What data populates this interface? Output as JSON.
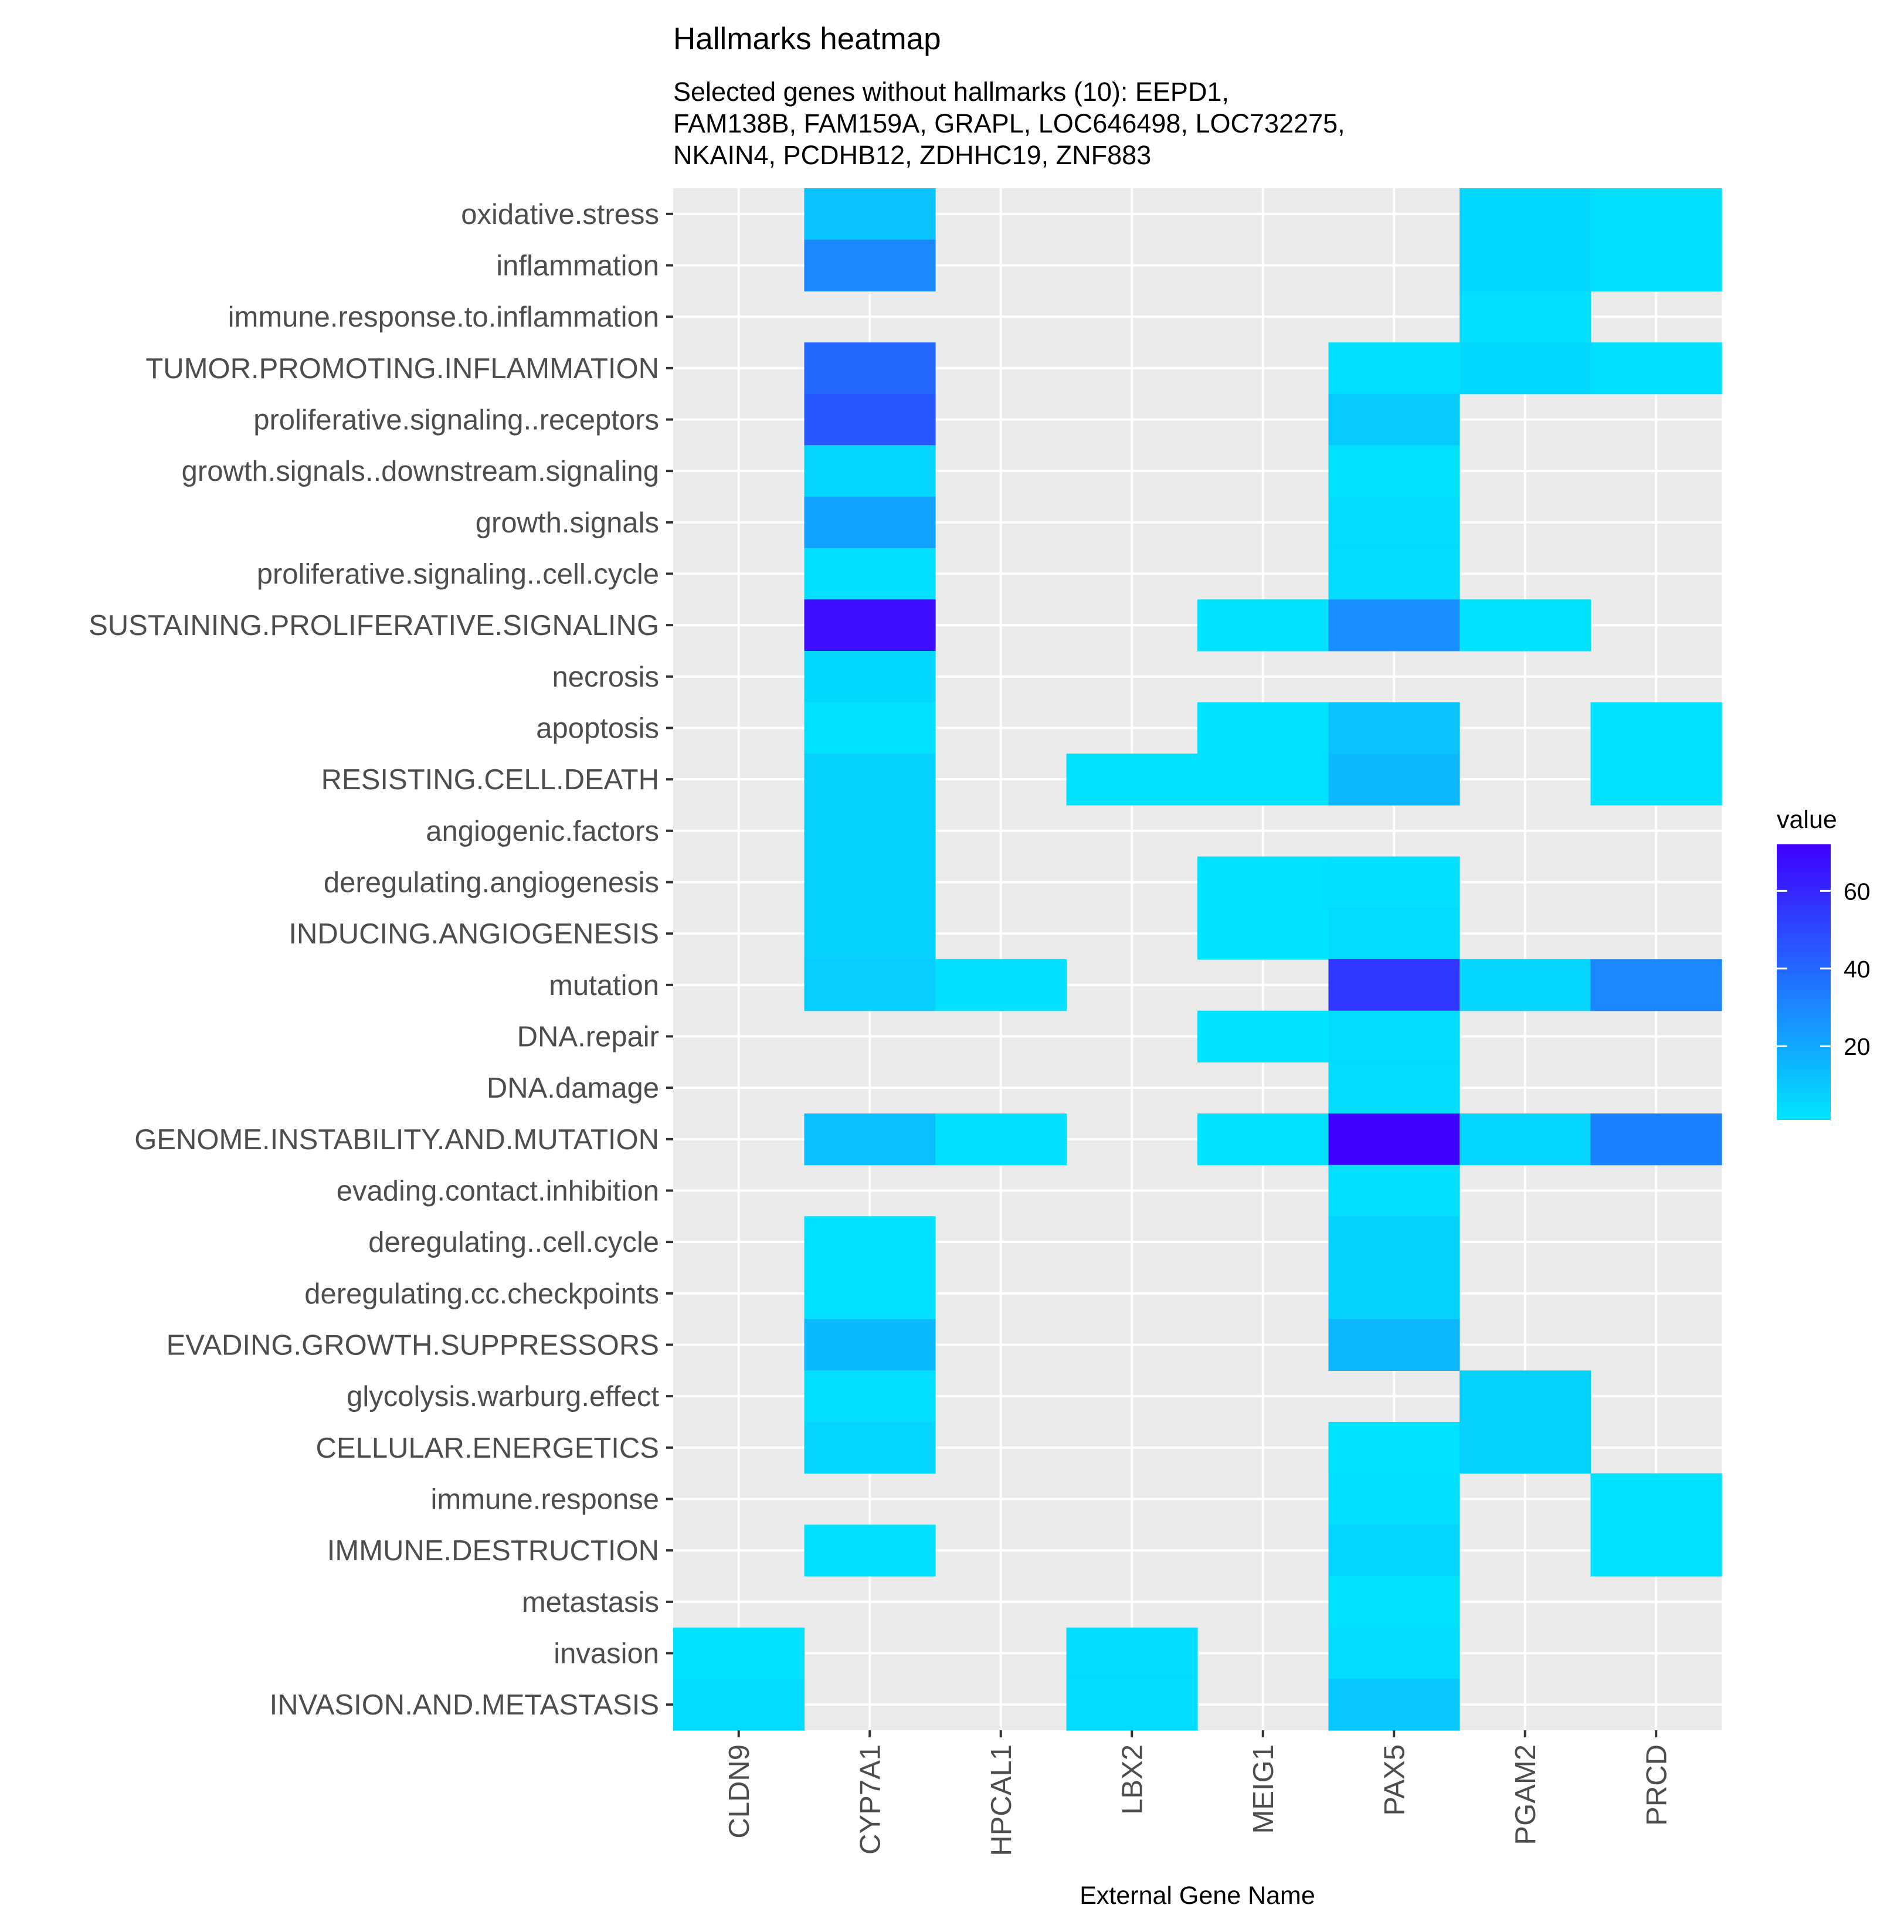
{
  "chart_data": {
    "type": "heatmap",
    "title": "Hallmarks heatmap",
    "subtitle_lines": [
      "Selected genes without hallmarks (10): EEPD1,",
      "FAM138B, FAM159A, GRAPL, LOC646498, LOC732275,",
      "NKAIN4, PCDHB12, ZDHHC19, ZNF883"
    ],
    "xlabel": "External Gene Name",
    "ylabel": "",
    "x_categories": [
      "CLDN9",
      "CYP7A1",
      "HPCAL1",
      "LBX2",
      "MEIG1",
      "PAX5",
      "PGAM2",
      "PRCD"
    ],
    "y_categories": [
      "oxidative.stress",
      "inflammation",
      "immune.response.to.inflammation",
      "TUMOR.PROMOTING.INFLAMMATION",
      "proliferative.signaling..receptors",
      "growth.signals..downstream.signaling",
      "growth.signals",
      "proliferative.signaling..cell.cycle",
      "SUSTAINING.PROLIFERATIVE.SIGNALING",
      "necrosis",
      "apoptosis",
      "RESISTING.CELL.DEATH",
      "angiogenic.factors",
      "deregulating.angiogenesis",
      "INDUCING.ANGIOGENESIS",
      "mutation",
      "DNA.repair",
      "DNA.damage",
      "GENOME.INSTABILITY.AND.MUTATION",
      "evading.contact.inhibition",
      "deregulating..cell.cycle",
      "deregulating.cc.checkpoints",
      "EVADING.GROWTH.SUPPRESSORS",
      "glycolysis.warburg.effect",
      "CELLULAR.ENERGETICS",
      "immune.response",
      "IMMUNE.DESTRUCTION",
      "metastasis",
      "invasion",
      "INVASION.AND.METASTASIS"
    ],
    "cells": [
      {
        "y": "oxidative.stress",
        "x": "CYP7A1",
        "value": 12
      },
      {
        "y": "oxidative.stress",
        "x": "PGAM2",
        "value": 5
      },
      {
        "y": "oxidative.stress",
        "x": "PRCD",
        "value": 3
      },
      {
        "y": "inflammation",
        "x": "CYP7A1",
        "value": 30
      },
      {
        "y": "inflammation",
        "x": "PGAM2",
        "value": 5
      },
      {
        "y": "inflammation",
        "x": "PRCD",
        "value": 3
      },
      {
        "y": "immune.response.to.inflammation",
        "x": "PGAM2",
        "value": 3
      },
      {
        "y": "TUMOR.PROMOTING.INFLAMMATION",
        "x": "CYP7A1",
        "value": 40
      },
      {
        "y": "TUMOR.PROMOTING.INFLAMMATION",
        "x": "PAX5",
        "value": 3
      },
      {
        "y": "TUMOR.PROMOTING.INFLAMMATION",
        "x": "PGAM2",
        "value": 5
      },
      {
        "y": "TUMOR.PROMOTING.INFLAMMATION",
        "x": "PRCD",
        "value": 3
      },
      {
        "y": "proliferative.signaling..receptors",
        "x": "CYP7A1",
        "value": 45
      },
      {
        "y": "proliferative.signaling..receptors",
        "x": "PAX5",
        "value": 9
      },
      {
        "y": "growth.signals..downstream.signaling",
        "x": "CYP7A1",
        "value": 6
      },
      {
        "y": "growth.signals..downstream.signaling",
        "x": "PAX5",
        "value": 2
      },
      {
        "y": "growth.signals",
        "x": "CYP7A1",
        "value": 22
      },
      {
        "y": "growth.signals",
        "x": "PAX5",
        "value": 4
      },
      {
        "y": "proliferative.signaling..cell.cycle",
        "x": "CYP7A1",
        "value": 3
      },
      {
        "y": "proliferative.signaling..cell.cycle",
        "x": "PAX5",
        "value": 4
      },
      {
        "y": "SUSTAINING.PROLIFERATIVE.SIGNALING",
        "x": "CYP7A1",
        "value": 68
      },
      {
        "y": "SUSTAINING.PROLIFERATIVE.SIGNALING",
        "x": "MEIG1",
        "value": 2
      },
      {
        "y": "SUSTAINING.PROLIFERATIVE.SIGNALING",
        "x": "PAX5",
        "value": 28
      },
      {
        "y": "SUSTAINING.PROLIFERATIVE.SIGNALING",
        "x": "PGAM2",
        "value": 2
      },
      {
        "y": "necrosis",
        "x": "CYP7A1",
        "value": 5
      },
      {
        "y": "apoptosis",
        "x": "CYP7A1",
        "value": 2
      },
      {
        "y": "apoptosis",
        "x": "MEIG1",
        "value": 2
      },
      {
        "y": "apoptosis",
        "x": "PAX5",
        "value": 12
      },
      {
        "y": "apoptosis",
        "x": "PRCD",
        "value": 2
      },
      {
        "y": "RESISTING.CELL.DEATH",
        "x": "CYP7A1",
        "value": 7
      },
      {
        "y": "RESISTING.CELL.DEATH",
        "x": "LBX2",
        "value": 2
      },
      {
        "y": "RESISTING.CELL.DEATH",
        "x": "MEIG1",
        "value": 2
      },
      {
        "y": "RESISTING.CELL.DEATH",
        "x": "PAX5",
        "value": 15
      },
      {
        "y": "RESISTING.CELL.DEATH",
        "x": "PRCD",
        "value": 2
      },
      {
        "y": "angiogenic.factors",
        "x": "CYP7A1",
        "value": 7
      },
      {
        "y": "deregulating.angiogenesis",
        "x": "CYP7A1",
        "value": 7
      },
      {
        "y": "deregulating.angiogenesis",
        "x": "MEIG1",
        "value": 2
      },
      {
        "y": "deregulating.angiogenesis",
        "x": "PAX5",
        "value": 3
      },
      {
        "y": "INDUCING.ANGIOGENESIS",
        "x": "CYP7A1",
        "value": 7
      },
      {
        "y": "INDUCING.ANGIOGENESIS",
        "x": "MEIG1",
        "value": 2
      },
      {
        "y": "INDUCING.ANGIOGENESIS",
        "x": "PAX5",
        "value": 4
      },
      {
        "y": "mutation",
        "x": "CYP7A1",
        "value": 8
      },
      {
        "y": "mutation",
        "x": "HPCAL1",
        "value": 3
      },
      {
        "y": "mutation",
        "x": "PAX5",
        "value": 55
      },
      {
        "y": "mutation",
        "x": "PGAM2",
        "value": 6
      },
      {
        "y": "mutation",
        "x": "PRCD",
        "value": 30
      },
      {
        "y": "DNA.repair",
        "x": "MEIG1",
        "value": 2
      },
      {
        "y": "DNA.repair",
        "x": "PAX5",
        "value": 4
      },
      {
        "y": "DNA.damage",
        "x": "PAX5",
        "value": 4
      },
      {
        "y": "GENOME.INSTABILITY.AND.MUTATION",
        "x": "CYP7A1",
        "value": 13
      },
      {
        "y": "GENOME.INSTABILITY.AND.MUTATION",
        "x": "HPCAL1",
        "value": 3
      },
      {
        "y": "GENOME.INSTABILITY.AND.MUTATION",
        "x": "MEIG1",
        "value": 2
      },
      {
        "y": "GENOME.INSTABILITY.AND.MUTATION",
        "x": "PAX5",
        "value": 72
      },
      {
        "y": "GENOME.INSTABILITY.AND.MUTATION",
        "x": "PGAM2",
        "value": 6
      },
      {
        "y": "GENOME.INSTABILITY.AND.MUTATION",
        "x": "PRCD",
        "value": 32
      },
      {
        "y": "evading.contact.inhibition",
        "x": "PAX5",
        "value": 3
      },
      {
        "y": "deregulating..cell.cycle",
        "x": "CYP7A1",
        "value": 2
      },
      {
        "y": "deregulating..cell.cycle",
        "x": "PAX5",
        "value": 7
      },
      {
        "y": "deregulating.cc.checkpoints",
        "x": "CYP7A1",
        "value": 2
      },
      {
        "y": "deregulating.cc.checkpoints",
        "x": "PAX5",
        "value": 7
      },
      {
        "y": "EVADING.GROWTH.SUPPRESSORS",
        "x": "CYP7A1",
        "value": 14
      },
      {
        "y": "EVADING.GROWTH.SUPPRESSORS",
        "x": "PAX5",
        "value": 15
      },
      {
        "y": "glycolysis.warburg.effect",
        "x": "CYP7A1",
        "value": 3
      },
      {
        "y": "glycolysis.warburg.effect",
        "x": "PGAM2",
        "value": 7
      },
      {
        "y": "CELLULAR.ENERGETICS",
        "x": "CYP7A1",
        "value": 6
      },
      {
        "y": "CELLULAR.ENERGETICS",
        "x": "PAX5",
        "value": 2
      },
      {
        "y": "CELLULAR.ENERGETICS",
        "x": "PGAM2",
        "value": 7
      },
      {
        "y": "immune.response",
        "x": "PAX5",
        "value": 3
      },
      {
        "y": "immune.response",
        "x": "PRCD",
        "value": 2
      },
      {
        "y": "IMMUNE.DESTRUCTION",
        "x": "CYP7A1",
        "value": 3
      },
      {
        "y": "IMMUNE.DESTRUCTION",
        "x": "PAX5",
        "value": 6
      },
      {
        "y": "IMMUNE.DESTRUCTION",
        "x": "PRCD",
        "value": 2
      },
      {
        "y": "metastasis",
        "x": "PAX5",
        "value": 2
      },
      {
        "y": "invasion",
        "x": "CLDN9",
        "value": 2
      },
      {
        "y": "invasion",
        "x": "LBX2",
        "value": 4
      },
      {
        "y": "invasion",
        "x": "PAX5",
        "value": 4
      },
      {
        "y": "INVASION.AND.METASTASIS",
        "x": "CLDN9",
        "value": 4
      },
      {
        "y": "INVASION.AND.METASTASIS",
        "x": "LBX2",
        "value": 4
      },
      {
        "y": "INVASION.AND.METASTASIS",
        "x": "PAX5",
        "value": 10
      }
    ],
    "color_scale": {
      "low": "#00E5FF",
      "high": "#4000FF",
      "domain": [
        1,
        72
      ]
    },
    "legend": {
      "title": "value",
      "ticks": [
        20,
        40,
        60
      ],
      "placement": "right"
    },
    "panel_background": "#EBEBEB",
    "grid": true
  }
}
